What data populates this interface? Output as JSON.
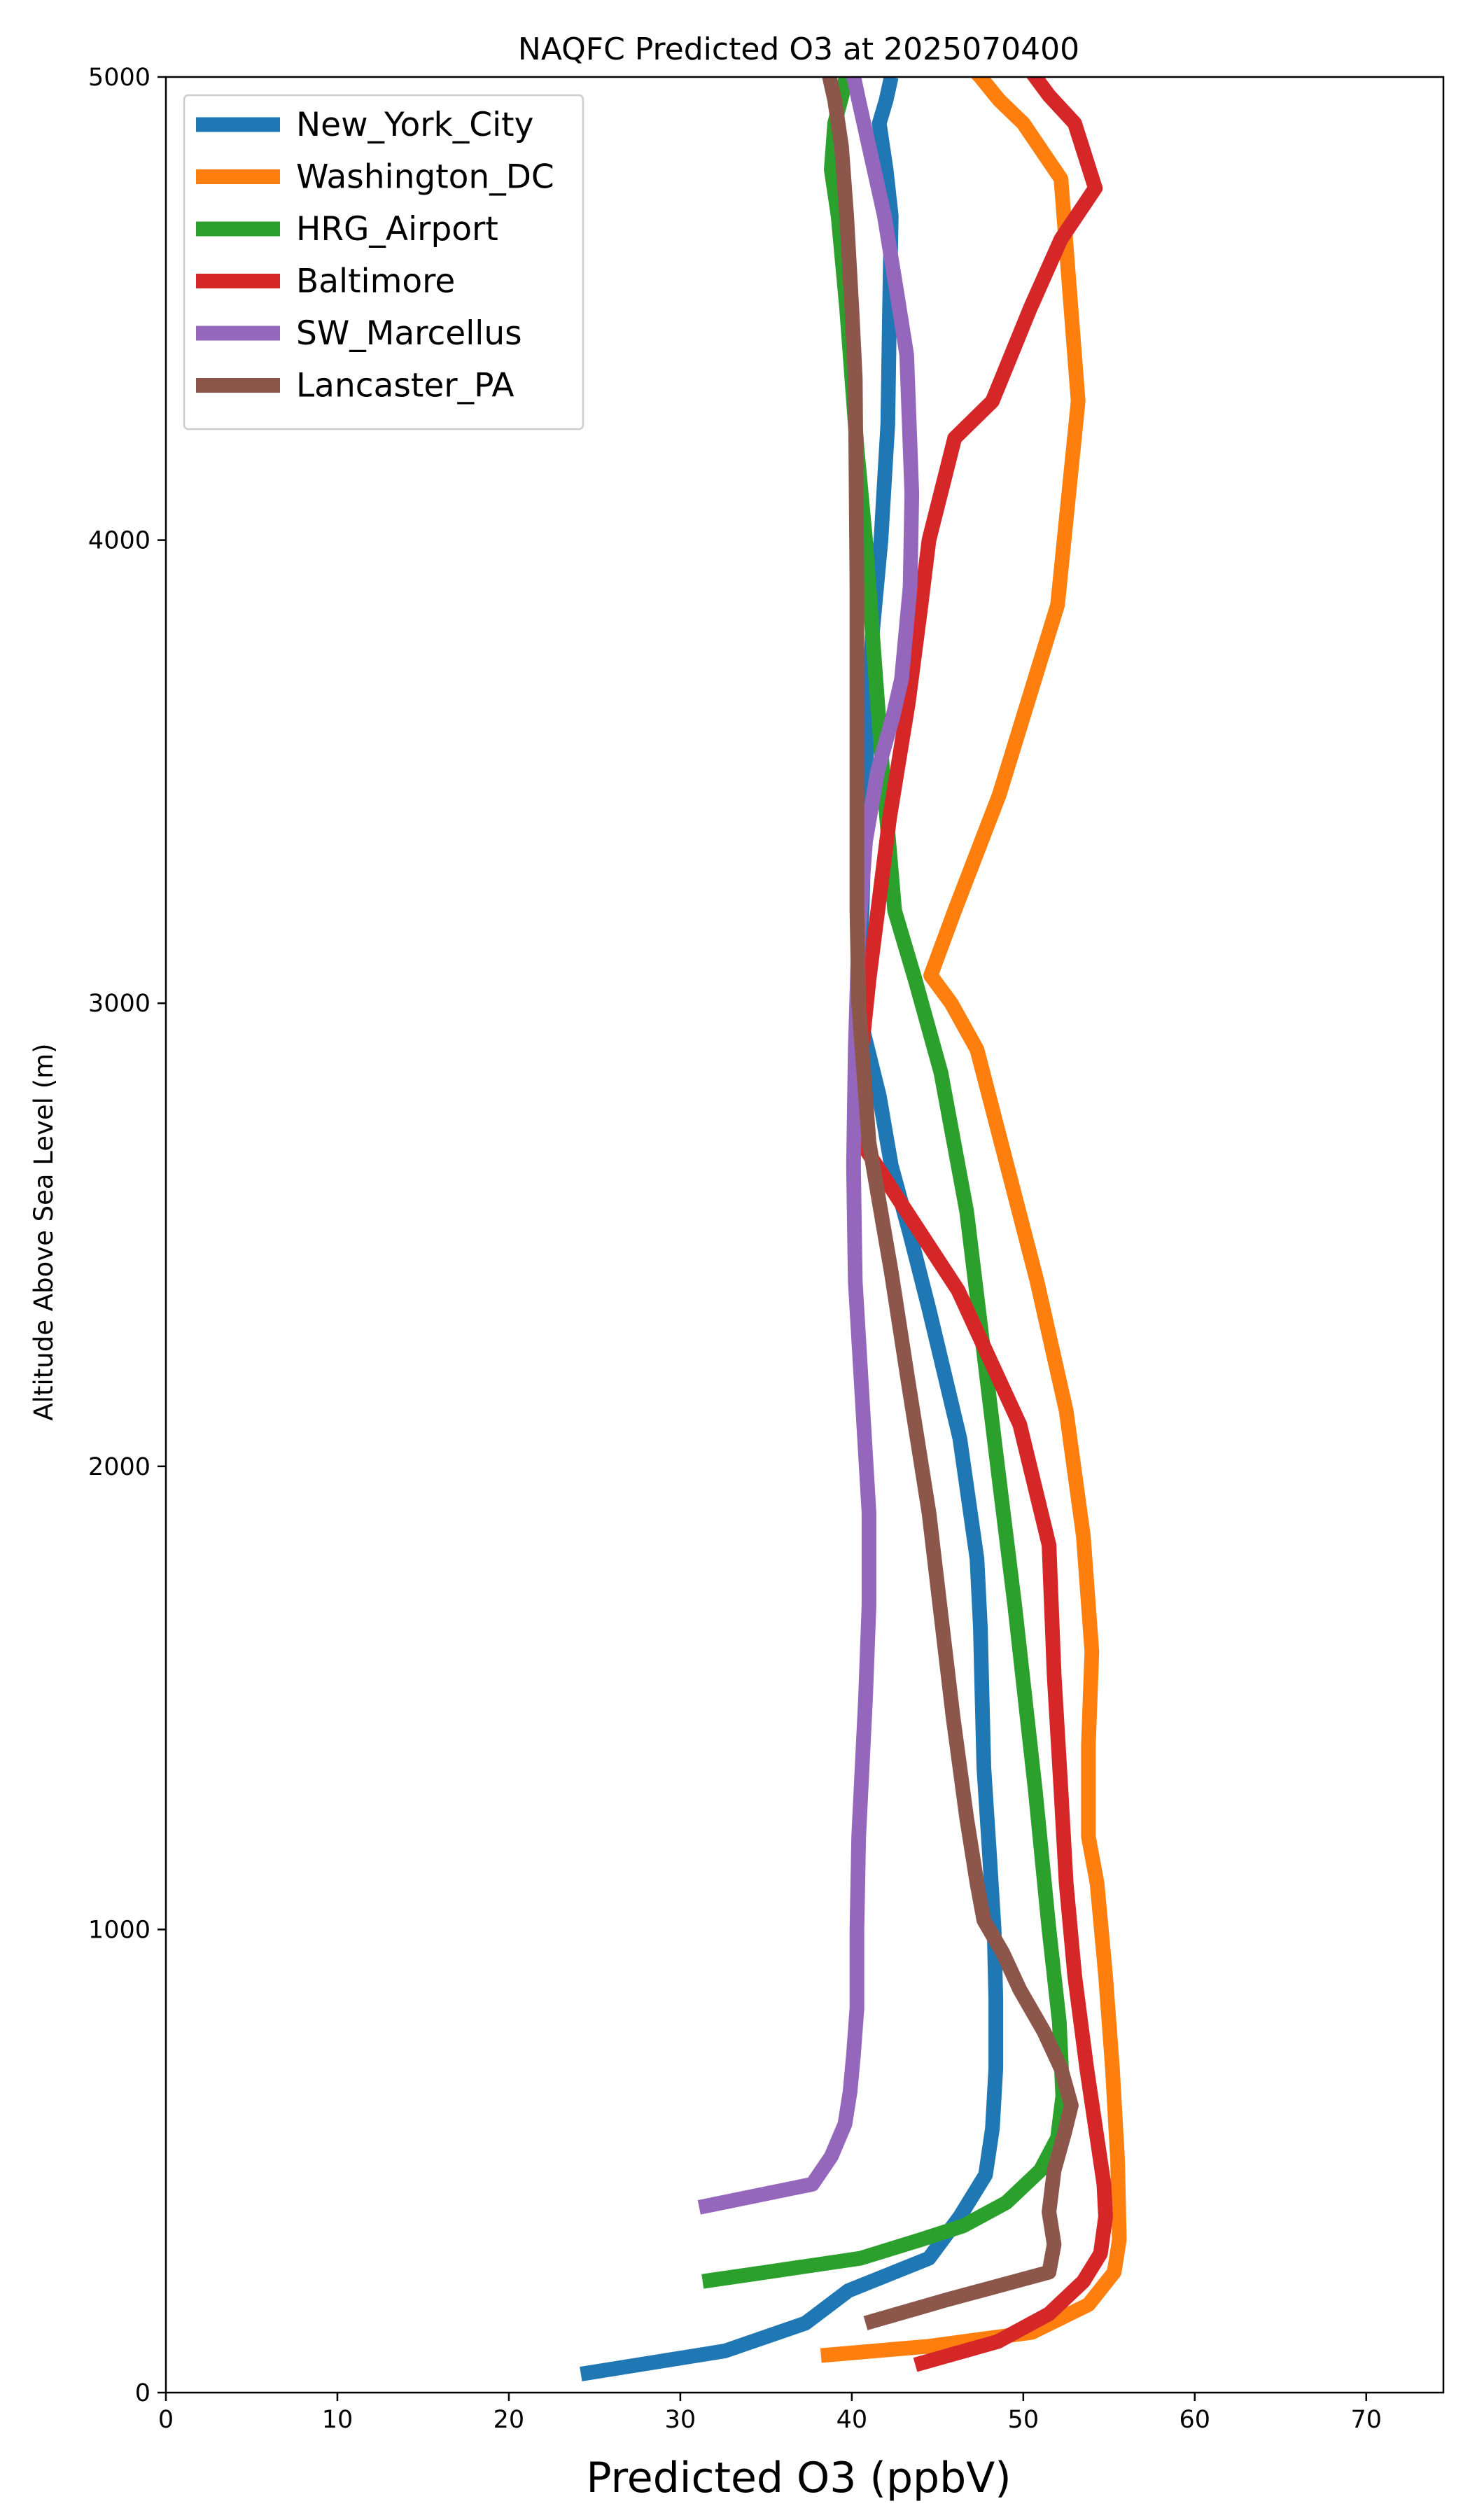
{
  "chart_data": {
    "type": "line",
    "title": "NAQFC Predicted O3 at 2025070400",
    "xlabel": "Predicted O3 (ppbV)",
    "ylabel": "Altitude Above Sea Level (m)",
    "xlim": [
      0,
      74.5
    ],
    "ylim": [
      0,
      5000
    ],
    "xticks": [
      0,
      10,
      20,
      30,
      40,
      50,
      60,
      70
    ],
    "yticks": [
      0,
      1000,
      2000,
      3000,
      4000,
      5000
    ],
    "grid": false,
    "legend_position": "upper-left",
    "series": [
      {
        "name": "New_York_City",
        "color": "#1f77b4",
        "x": [
          24.2,
          32.6,
          37.3,
          39.8,
          44.5,
          46.3,
          47.8,
          48.2,
          48.4,
          48.4,
          48.3,
          48.0,
          47.7,
          47.6,
          47.5,
          47.3,
          46.3,
          44.5,
          43.4,
          42.3,
          41.6,
          40.6,
          40.3,
          40.6,
          40.8,
          41.2,
          41.7,
          42.1,
          42.2,
          42.3,
          42.0,
          41.6,
          42.0,
          42.3
        ],
        "y": [
          40,
          90,
          150,
          220,
          290,
          380,
          470,
          570,
          700,
          850,
          1000,
          1180,
          1350,
          1500,
          1650,
          1800,
          2060,
          2340,
          2500,
          2650,
          2800,
          2950,
          3010,
          3200,
          3500,
          3800,
          4000,
          4250,
          4500,
          4700,
          4800,
          4900,
          4950,
          5000
        ]
      },
      {
        "name": "Washington_DC",
        "color": "#ff7f0e",
        "x": [
          38.2,
          44.5,
          50.5,
          53.8,
          55.3,
          55.6,
          55.5,
          55.2,
          54.8,
          54.3,
          53.8,
          53.8,
          54.0,
          53.5,
          52.5,
          50.8,
          48.7,
          47.3,
          45.8,
          44.6,
          46.0,
          48.6,
          52.0,
          53.2,
          52.2,
          50.0,
          48.6,
          47.5,
          47.0
        ],
        "y": [
          80,
          100,
          130,
          190,
          260,
          330,
          500,
          700,
          900,
          1100,
          1200,
          1400,
          1600,
          1850,
          2120,
          2400,
          2700,
          2900,
          3000,
          3060,
          3200,
          3450,
          3860,
          4300,
          4780,
          4900,
          4950,
          5000,
          5020
        ]
      },
      {
        "name": "HRG_Airport",
        "color": "#2ca02c",
        "x": [
          31.3,
          35.0,
          40.5,
          44.0,
          46.5,
          49.0,
          51.0,
          52.0,
          52.3,
          52.1,
          51.5,
          50.7,
          49.5,
          48.5,
          46.7,
          45.2,
          43.7,
          42.5,
          41.8,
          41.2,
          40.8,
          40.3,
          39.7,
          39.2,
          38.8,
          39.0,
          39.5,
          39.8
        ],
        "y": [
          240,
          260,
          290,
          330,
          360,
          410,
          480,
          550,
          640,
          800,
          1000,
          1300,
          1700,
          2000,
          2550,
          2850,
          3050,
          3200,
          3500,
          3800,
          4000,
          4200,
          4500,
          4700,
          4800,
          4900,
          4970,
          5030
        ]
      },
      {
        "name": "Baltimore",
        "color": "#d62728",
        "x": [
          43.7,
          48.5,
          51.5,
          53.5,
          54.5,
          54.8,
          54.7,
          54.3,
          53.7,
          53.0,
          52.5,
          52.2,
          51.8,
          51.5,
          49.8,
          46.2,
          40.9,
          40.3,
          41.0,
          42.2,
          43.3,
          44.0,
          44.5,
          46.0,
          48.2,
          50.4,
          52.2,
          54.2,
          53.0,
          51.5,
          50.3
        ],
        "y": [
          60,
          110,
          170,
          240,
          300,
          380,
          450,
          550,
          700,
          900,
          1100,
          1300,
          1550,
          1830,
          2090,
          2380,
          2680,
          2800,
          3050,
          3400,
          3650,
          3850,
          4000,
          4220,
          4300,
          4500,
          4650,
          4760,
          4900,
          4960,
          5020
        ]
      },
      {
        "name": "SW_Marcellus",
        "color": "#9467bd",
        "x": [
          31.1,
          37.7,
          38.8,
          39.6,
          39.9,
          40.1,
          40.3,
          40.3,
          40.4,
          40.8,
          41.0,
          41.0,
          40.6,
          40.2,
          40.1,
          40.2,
          40.4,
          40.8,
          41.5,
          42.4,
          42.9,
          43.4,
          43.5,
          43.2,
          42.6,
          41.9,
          41.0,
          40.4,
          40.0
        ],
        "y": [
          400,
          450,
          510,
          580,
          650,
          730,
          830,
          1000,
          1200,
          1500,
          1700,
          1900,
          2150,
          2400,
          2650,
          2900,
          3150,
          3350,
          3500,
          3620,
          3700,
          3900,
          4100,
          4400,
          4540,
          4700,
          4850,
          4950,
          5020
        ]
      },
      {
        "name": "Lancaster_PA",
        "color": "#8c564b",
        "x": [
          40.8,
          45.5,
          51.5,
          51.8,
          51.5,
          51.8,
          52.4,
          52.8,
          52.2,
          51.2,
          49.8,
          48.8,
          47.7,
          47.3,
          46.7,
          45.9,
          45.2,
          44.5,
          43.3,
          42.3,
          41.6,
          41.0,
          40.7,
          40.4,
          40.3,
          40.3,
          40.3,
          40.2,
          40.0,
          39.7,
          39.4,
          39.0,
          38.7,
          38.5
        ],
        "y": [
          150,
          200,
          260,
          320,
          390,
          480,
          560,
          620,
          700,
          780,
          870,
          950,
          1020,
          1100,
          1240,
          1460,
          1680,
          1900,
          2180,
          2420,
          2570,
          2700,
          2850,
          3000,
          3200,
          3500,
          3900,
          4350,
          4500,
          4700,
          4850,
          4950,
          5000,
          5050
        ]
      }
    ]
  }
}
